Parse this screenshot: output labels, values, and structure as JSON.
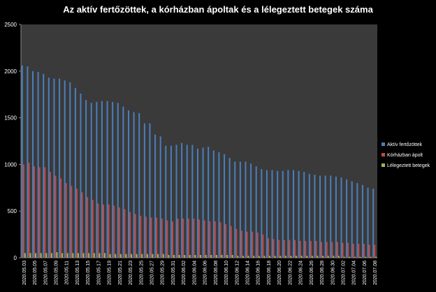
{
  "chart_data": {
    "type": "bar",
    "title": "Az aktív fertőzöttek, a kórházban ápoltak és a lélegeztett betegek száma",
    "categories": [
      "2020.05.03",
      null,
      "2020.05.05",
      null,
      "2020.05.07",
      null,
      "2020.05.09",
      null,
      "2020.05.11",
      null,
      "2020.05.13",
      null,
      "2020.05.15",
      null,
      "2020.05.17",
      null,
      "2020.05.19",
      null,
      "2020.05.21",
      null,
      "2020.05.23",
      null,
      "2020.05.25",
      null,
      "2020.05.27",
      null,
      "2020.05.29",
      null,
      "2020.05.31",
      null,
      "2020.06.02",
      null,
      "2020.06.04",
      null,
      "2020.06.06",
      null,
      "2020.06.08",
      null,
      "2020.06.10",
      null,
      "2020.06.12",
      null,
      "2020.06.14",
      null,
      "2020.06.16",
      null,
      "2020.06.18",
      null,
      "2020.06.20",
      null,
      "2020.06.22",
      null,
      "2020.06.24",
      null,
      "2020.06.26",
      null,
      "2020.06.28",
      null,
      "2020.06.30",
      null,
      "2020.07.02",
      null,
      "2020.07.04",
      null,
      "2020.07.06",
      null,
      "2020.07.08"
    ],
    "series": [
      {
        "name": "Aktív fertőzöttek",
        "color": "#4a7ebb",
        "values": [
          2060,
          2050,
          2000,
          1990,
          1970,
          1930,
          1920,
          1920,
          1900,
          1880,
          1820,
          1760,
          1690,
          1660,
          1670,
          1680,
          1680,
          1670,
          1660,
          1620,
          1580,
          1560,
          1550,
          1440,
          1440,
          1320,
          1300,
          1200,
          1200,
          1210,
          1230,
          1210,
          1210,
          1170,
          1180,
          1190,
          1150,
          1130,
          1110,
          1070,
          1030,
          1030,
          1030,
          1010,
          980,
          950,
          940,
          940,
          930,
          930,
          940,
          940,
          930,
          920,
          900,
          890,
          880,
          880,
          880,
          870,
          860,
          840,
          820,
          800,
          780,
          750,
          740
        ]
      },
      {
        "name": "Kórházban ápolt",
        "color": "#be4b48",
        "values": [
          1000,
          1020,
          980,
          970,
          970,
          920,
          880,
          850,
          800,
          770,
          740,
          700,
          650,
          620,
          580,
          570,
          570,
          560,
          540,
          520,
          490,
          470,
          450,
          440,
          430,
          430,
          420,
          400,
          390,
          420,
          420,
          420,
          420,
          410,
          400,
          390,
          390,
          380,
          360,
          340,
          310,
          290,
          280,
          280,
          270,
          250,
          210,
          200,
          190,
          190,
          190,
          190,
          180,
          180,
          180,
          180,
          170,
          170,
          170,
          170,
          160,
          160,
          150,
          150,
          150,
          140,
          140
        ]
      },
      {
        "name": "Lélegeztett betegek",
        "color": "#98b954",
        "values": [
          50,
          50,
          50,
          50,
          50,
          50,
          60,
          50,
          50,
          50,
          50,
          50,
          50,
          50,
          50,
          50,
          40,
          40,
          40,
          40,
          40,
          40,
          40,
          40,
          40,
          40,
          40,
          30,
          30,
          30,
          30,
          30,
          30,
          30,
          30,
          30,
          30,
          30,
          30,
          30,
          20,
          20,
          20,
          20,
          20,
          20,
          20,
          20,
          20,
          20,
          20,
          20,
          20,
          20,
          20,
          20,
          20,
          20,
          20,
          20,
          10,
          10,
          10,
          10,
          10,
          10,
          10
        ]
      }
    ],
    "ylim": [
      0,
      2500
    ],
    "yticks": [
      0,
      500,
      1000,
      1500,
      2000,
      2500
    ],
    "legend": "right"
  }
}
